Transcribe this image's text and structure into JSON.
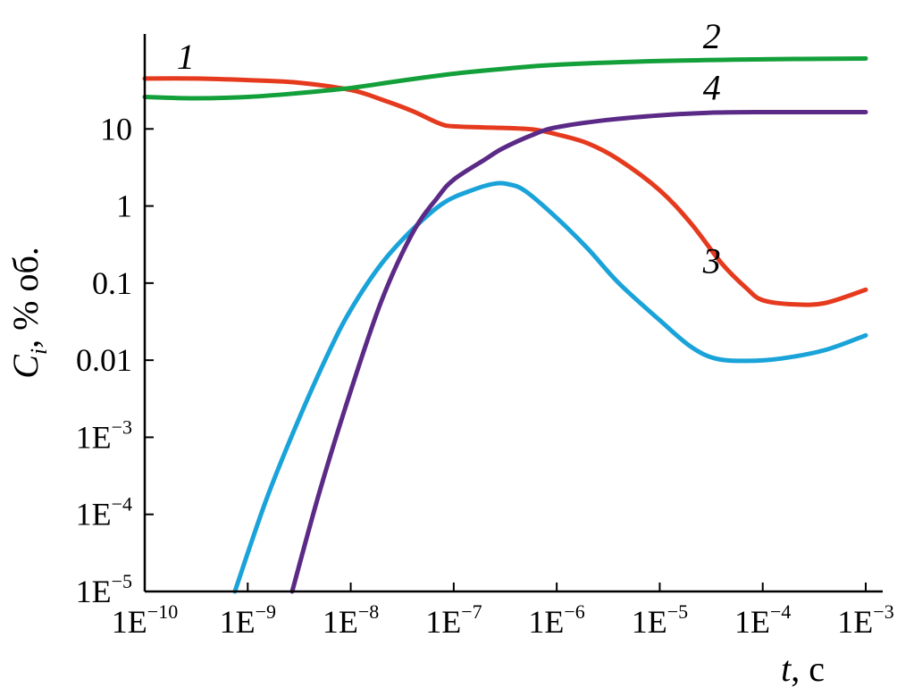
{
  "chart_data": {
    "type": "line",
    "x_scale": "log",
    "y_scale": "log",
    "xlim": [
      1e-10,
      0.001
    ],
    "ylim": [
      1e-05,
      100
    ],
    "grid": false,
    "xlabel": {
      "var": "t",
      "rest": ", с"
    },
    "ylabel": {
      "var": "C",
      "sub": "i",
      "rest": ", % об."
    },
    "x_ticks": [
      {
        "value": 1e-10,
        "base": "1E",
        "exp": "−10"
      },
      {
        "value": 1e-09,
        "base": "1E",
        "exp": "−9"
      },
      {
        "value": 1e-08,
        "base": "1E",
        "exp": "−8"
      },
      {
        "value": 1e-07,
        "base": "1E",
        "exp": "−7"
      },
      {
        "value": 1e-06,
        "base": "1E",
        "exp": "−6"
      },
      {
        "value": 1e-05,
        "base": "1E",
        "exp": "−5"
      },
      {
        "value": 0.0001,
        "base": "1E",
        "exp": "−4"
      },
      {
        "value": 0.001,
        "base": "1E",
        "exp": "−3"
      }
    ],
    "y_ticks": [
      {
        "value": 1e-05,
        "base": "1E",
        "exp": "−5"
      },
      {
        "value": 0.0001,
        "base": "1E",
        "exp": "−4"
      },
      {
        "value": 0.001,
        "base": "1E",
        "exp": "−3"
      },
      {
        "value": 0.01,
        "base": "0.01",
        "exp": ""
      },
      {
        "value": 0.1,
        "base": "0.1",
        "exp": ""
      },
      {
        "value": 1,
        "base": "1",
        "exp": ""
      },
      {
        "value": 10,
        "base": "10",
        "exp": ""
      }
    ],
    "series": [
      {
        "name": "1",
        "color": "#e63a1e",
        "label_at": [
          2.5e-10,
          60
        ],
        "points": [
          [
            1e-10,
            45
          ],
          [
            3e-10,
            45
          ],
          [
            1e-09,
            43
          ],
          [
            3e-09,
            40
          ],
          [
            1e-08,
            32
          ],
          [
            2e-08,
            24
          ],
          [
            4e-08,
            17
          ],
          [
            7e-08,
            12
          ],
          [
            1e-07,
            10.8
          ],
          [
            3e-07,
            10.3
          ],
          [
            6e-07,
            9.8
          ],
          [
            1e-06,
            8.5
          ],
          [
            2e-06,
            6.5
          ],
          [
            4e-06,
            4
          ],
          [
            1e-05,
            1.6
          ],
          [
            2e-05,
            0.6
          ],
          [
            4e-05,
            0.18
          ],
          [
            7e-05,
            0.085
          ],
          [
            0.0001,
            0.06
          ],
          [
            0.0002,
            0.053
          ],
          [
            0.0004,
            0.055
          ],
          [
            0.001,
            0.082
          ]
        ]
      },
      {
        "name": "2",
        "color": "#13a03a",
        "label_at": [
          3.2e-05,
          112
        ],
        "points": [
          [
            1e-10,
            26
          ],
          [
            3e-10,
            25
          ],
          [
            1e-09,
            26
          ],
          [
            3e-09,
            29
          ],
          [
            1e-08,
            34
          ],
          [
            3e-08,
            42
          ],
          [
            1e-07,
            52
          ],
          [
            3e-07,
            60
          ],
          [
            1e-06,
            68
          ],
          [
            1e-05,
            76
          ],
          [
            0.0001,
            80
          ],
          [
            0.001,
            82
          ]
        ]
      },
      {
        "name": "3",
        "color": "#1aa3d9",
        "label_at": [
          3.2e-05,
          0.135
        ],
        "points": [
          [
            7.5e-10,
            1e-05
          ],
          [
            1.5e-09,
            0.00015
          ],
          [
            3e-09,
            0.0015
          ],
          [
            6e-09,
            0.012
          ],
          [
            1e-08,
            0.045
          ],
          [
            2e-08,
            0.18
          ],
          [
            4e-08,
            0.5
          ],
          [
            8e-08,
            1.1
          ],
          [
            1.5e-07,
            1.6
          ],
          [
            2.5e-07,
            1.95
          ],
          [
            3.5e-07,
            1.9
          ],
          [
            5e-07,
            1.55
          ],
          [
            1e-06,
            0.7
          ],
          [
            2e-06,
            0.28
          ],
          [
            4e-06,
            0.1
          ],
          [
            1e-05,
            0.033
          ],
          [
            2e-05,
            0.015
          ],
          [
            3.5e-05,
            0.0105
          ],
          [
            7e-05,
            0.0098
          ],
          [
            0.00015,
            0.0105
          ],
          [
            0.0004,
            0.0135
          ],
          [
            0.001,
            0.021
          ]
        ]
      },
      {
        "name": "4",
        "color": "#5b2a86",
        "label_at": [
          3.2e-05,
          24
        ],
        "points": [
          [
            2.7e-09,
            1e-05
          ],
          [
            5e-09,
            0.0002
          ],
          [
            1e-08,
            0.004
          ],
          [
            2e-08,
            0.06
          ],
          [
            4e-08,
            0.45
          ],
          [
            7e-08,
            1.3
          ],
          [
            1e-07,
            2.2
          ],
          [
            2e-07,
            4
          ],
          [
            3e-07,
            5.6
          ],
          [
            6e-07,
            8.5
          ],
          [
            1e-06,
            10.5
          ],
          [
            3e-06,
            13
          ],
          [
            1e-05,
            15
          ],
          [
            3e-05,
            16.2
          ],
          [
            0.0001,
            16.5
          ],
          [
            0.001,
            16.5
          ]
        ]
      }
    ]
  }
}
